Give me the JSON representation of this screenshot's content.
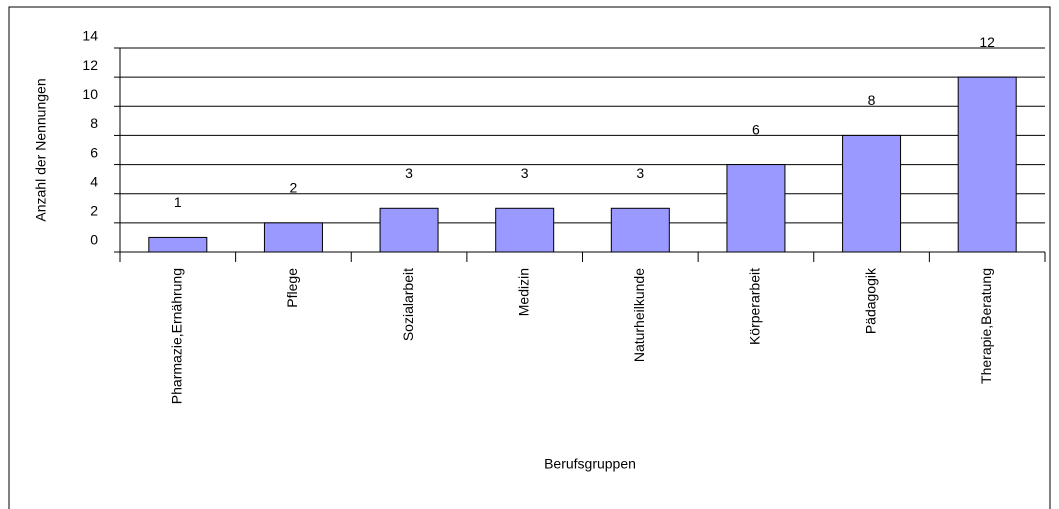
{
  "chart_data": {
    "type": "bar",
    "categories": [
      "Pharmazie,Ernährung",
      "Pflege",
      "Sozialarbeit",
      "Medizin",
      "Naturheilkunde",
      "Körperarbeit",
      "Pädagogik",
      "Therapie,Beratung"
    ],
    "values": [
      1,
      2,
      3,
      3,
      3,
      6,
      8,
      12
    ],
    "color": "#9999ff",
    "x_label": "Berufsgruppen",
    "y_label": "Anzahl der Nennungen",
    "ylim": [
      0,
      14
    ],
    "yticks": [
      0,
      2,
      4,
      6,
      8,
      10,
      12,
      14
    ],
    "grid": true
  }
}
